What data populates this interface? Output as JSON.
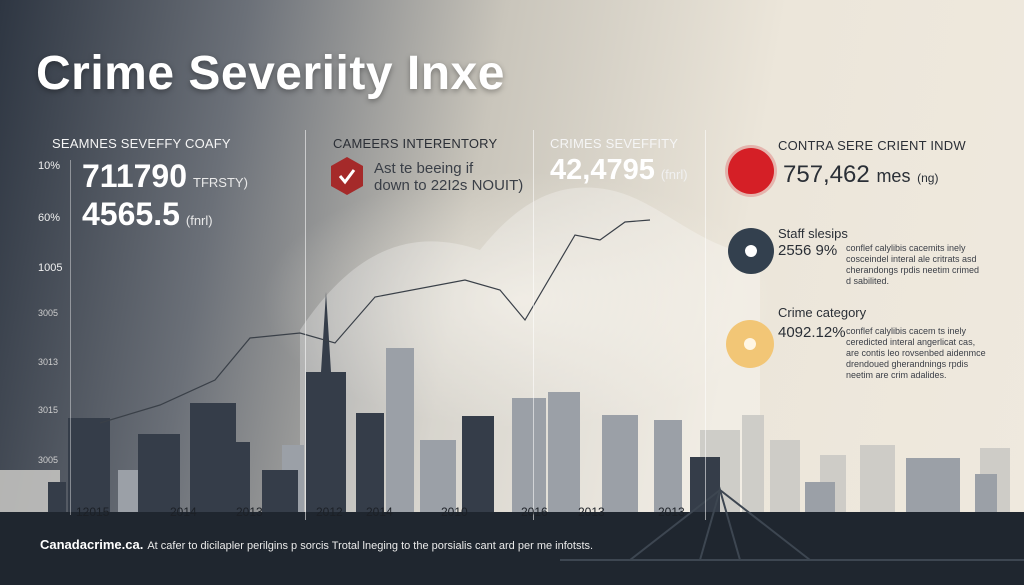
{
  "title": "Crime Severiity Inxe",
  "panels": {
    "p1": {
      "header": "SEAMNES SEVEFFY COAFY",
      "value1": "711790",
      "unit1": "TFRSTY)",
      "value2": "4565.5",
      "unit2": "(fnrl)"
    },
    "p2": {
      "header": "CAMEERS INTERENTORY",
      "text_line1": "Ast te beeing if",
      "text_line2": "down to 22I2s NOUIT)"
    },
    "p3": {
      "header": "CRIMES SEVEFFITY",
      "value": "42,4795",
      "unit": "(fnrl)"
    },
    "p4": {
      "header": "CONTRA SERE CRIENT INDW",
      "value": "757,462",
      "unit": "mes",
      "unit_small": "(ng)",
      "stats": [
        {
          "title": "Staff slesips",
          "value": "2556 9%",
          "desc": "conflef calylibis cacemits inely cosceindel interal ale critrats asd cherandongs rpdis neetim crimed d sabilited."
        },
        {
          "title": "Crime category",
          "value": "4092.12%",
          "desc": "conflef calylibis cacem ts inely ceredicted interal angerlicat cas, are contis leo rovsenbed aidenmce drendoued gherandnings rpdis neetim are crim adalides."
        }
      ]
    }
  },
  "y_axis_labels": [
    "10%",
    "60%",
    "1005",
    "3005",
    "3013",
    "3015",
    "3005"
  ],
  "x_axis_labels": [
    "12015",
    "2014",
    "2013",
    "2012",
    "2014",
    "2010",
    "2016",
    "2013",
    "2013"
  ],
  "footer": {
    "brand": "Canadacrime.ca.",
    "text": "At cafer to dicilapler perilgins p sorcis Trotal lneging to the porsialis cant ard per me infotsts."
  },
  "colors": {
    "red": "#d51f26",
    "navy": "#33404e",
    "amber": "#f2c676",
    "hex_red": "#a52a2a"
  },
  "chart_data": {
    "type": "line",
    "series": [
      {
        "values": [
          420,
          385,
          335,
          330,
          300,
          280,
          290,
          318,
          235,
          240,
          220
        ]
      }
    ]
  }
}
